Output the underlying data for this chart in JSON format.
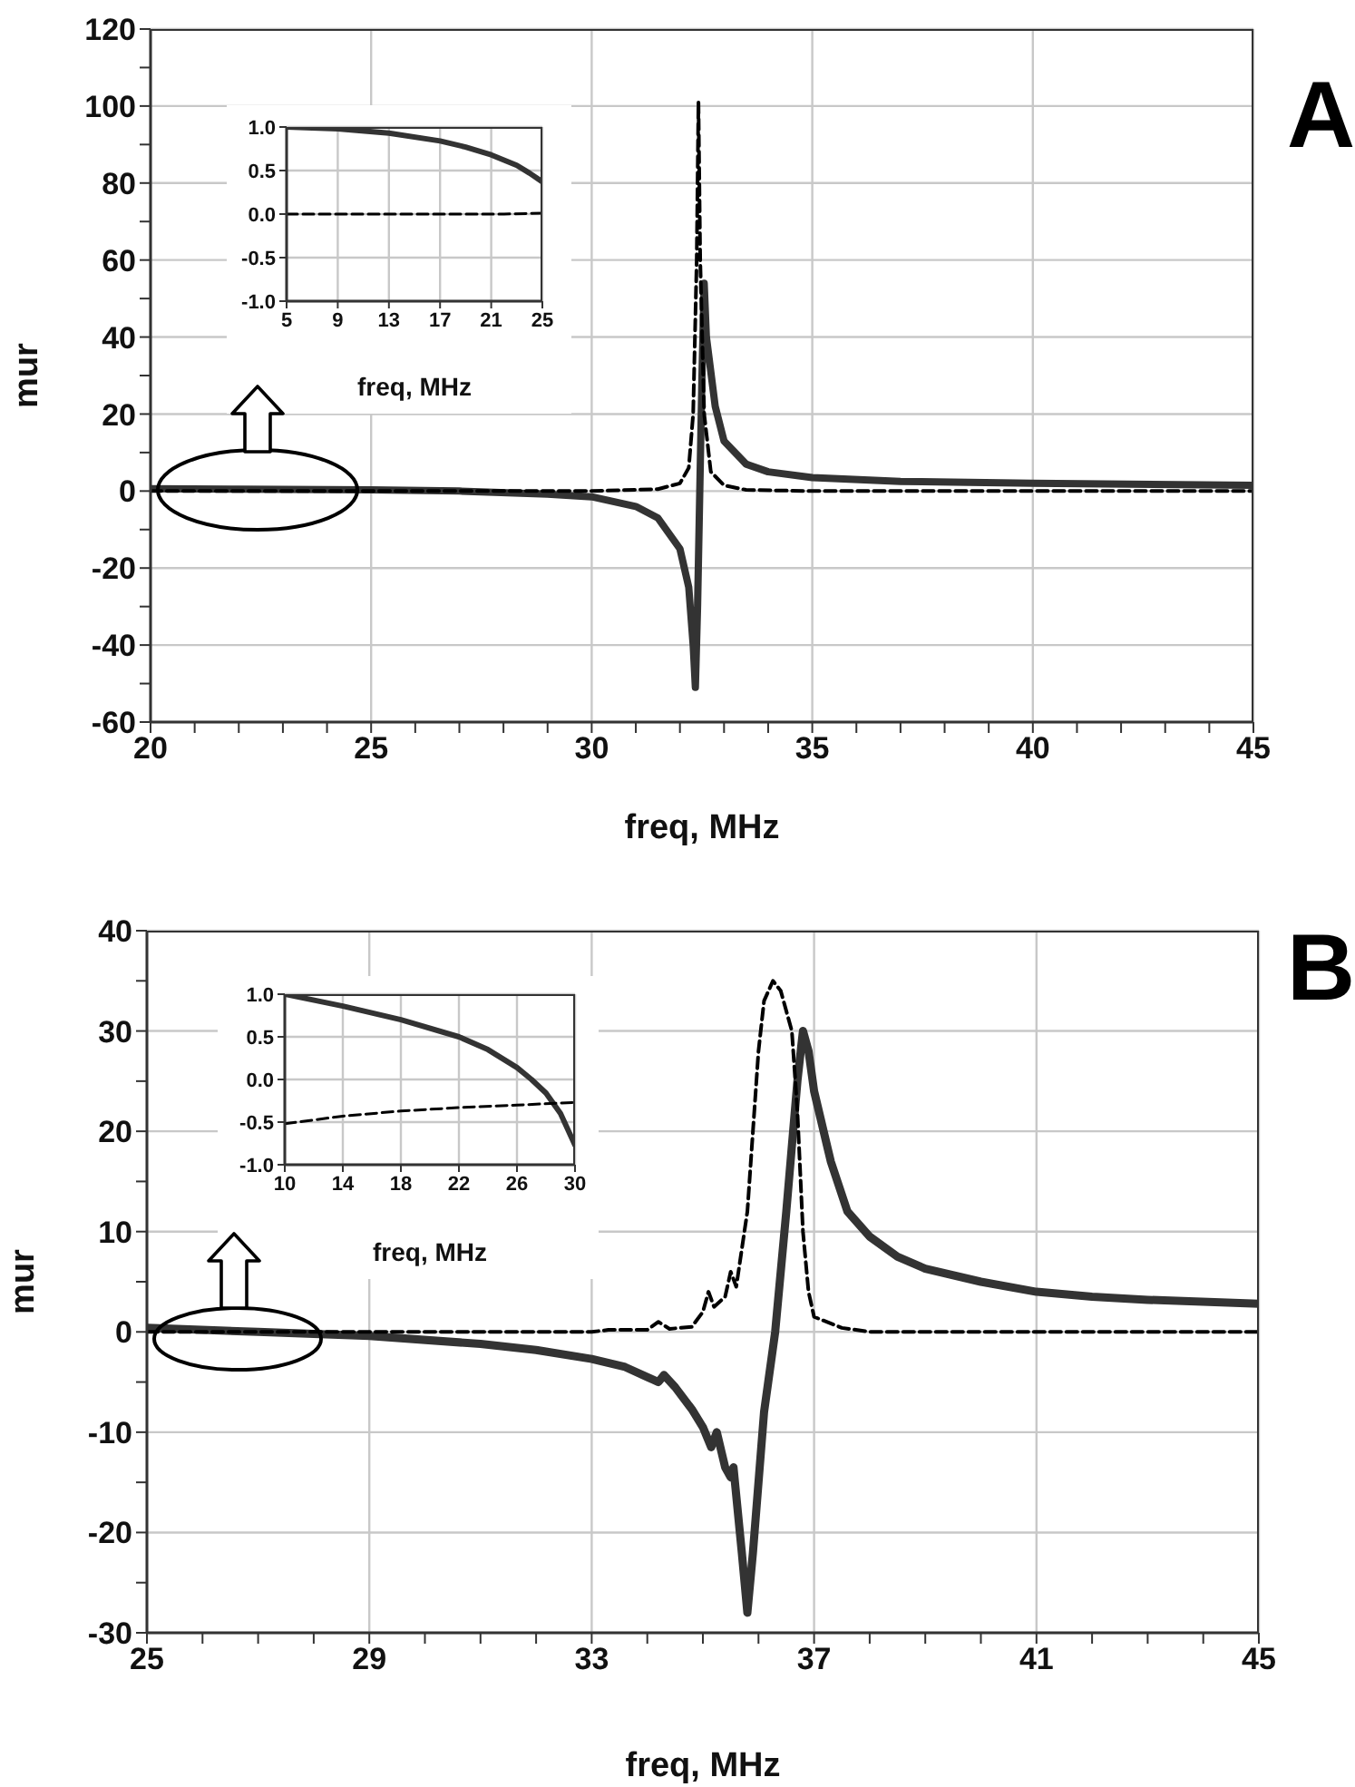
{
  "chart_data": [
    {
      "type": "line",
      "xlabel": "freq, MHz",
      "ylabel": "mur",
      "annotations": [
        "A"
      ],
      "grid": true,
      "marker": "none",
      "xlim": [
        20,
        45
      ],
      "xticks": [
        20,
        {
          "value": 21,
          "label": null
        },
        {
          "value": 22,
          "label": null
        },
        {
          "value": 23,
          "label": null
        },
        {
          "value": 24,
          "label": null
        },
        25,
        {
          "value": 26,
          "label": null
        },
        {
          "value": 27,
          "label": null
        },
        {
          "value": 28,
          "label": null
        },
        {
          "value": 29,
          "label": null
        },
        30,
        {
          "value": 31,
          "label": null
        },
        {
          "value": 32,
          "label": null
        },
        {
          "value": 33,
          "label": null
        },
        {
          "value": 34,
          "label": null
        },
        35,
        {
          "value": 36,
          "label": null
        },
        {
          "value": 37,
          "label": null
        },
        {
          "value": 38,
          "label": null
        },
        {
          "value": 39,
          "label": null
        },
        40,
        {
          "value": 41,
          "label": null
        },
        {
          "value": 42,
          "label": null
        },
        {
          "value": 43,
          "label": null
        },
        {
          "value": 44,
          "label": null
        },
        45
      ],
      "ylim": [
        -60,
        120
      ],
      "yticks": [
        -60,
        {
          "value": -50,
          "label": null
        },
        -40,
        {
          "value": -30,
          "label": null
        },
        -20,
        {
          "value": -10,
          "label": null
        },
        0,
        {
          "value": 10,
          "label": null
        },
        20,
        {
          "value": 30,
          "label": null
        },
        40,
        {
          "value": 50,
          "label": null
        },
        60,
        {
          "value": 70,
          "label": null
        },
        80,
        {
          "value": 90,
          "label": null
        },
        100,
        {
          "value": 110,
          "label": null
        },
        120
      ],
      "series": [
        {
          "color": "#333333",
          "line_style": "solid",
          "x": [
            20,
            22,
            25,
            27,
            29,
            30,
            31,
            31.5,
            32,
            32.2,
            32.3,
            32.35,
            32.4,
            32.45,
            32.5,
            32.55,
            32.6,
            32.8,
            33,
            33.5,
            34,
            35,
            37,
            40,
            45
          ],
          "values": [
            0.6,
            0.5,
            0.3,
            0,
            -0.8,
            -1.5,
            -4,
            -7,
            -15,
            -25,
            -40,
            -51,
            -30,
            0,
            30,
            54,
            40,
            22,
            13,
            7,
            5,
            3.5,
            2.5,
            2,
            1.5
          ]
        },
        {
          "color": "#000000",
          "line_style": "dashed",
          "x": [
            20,
            30,
            31.5,
            32,
            32.2,
            32.3,
            32.38,
            32.42,
            32.46,
            32.55,
            32.7,
            33,
            33.5,
            35,
            45
          ],
          "values": [
            0,
            0,
            0.5,
            2,
            6,
            20,
            60,
            101,
            60,
            20,
            5,
            1.5,
            0.3,
            0,
            0
          ]
        }
      ]
    },
    {
      "type": "line",
      "xlabel": "freq, MHz",
      "grid": true,
      "marker": "none",
      "xlim": [
        5,
        25
      ],
      "xticks": [
        5,
        9,
        13,
        17,
        21,
        25
      ],
      "ylim": [
        -1,
        1
      ],
      "yticks": [
        {
          "value": -1,
          "label": "-1.0"
        },
        {
          "value": -0.5,
          "label": "-0.5"
        },
        {
          "value": 0,
          "label": "0.0"
        },
        {
          "value": 0.5,
          "label": "0.5"
        },
        {
          "value": 1,
          "label": "1.0"
        }
      ],
      "series": [
        {
          "color": "#333333",
          "line_style": "solid",
          "x": [
            5,
            9,
            13,
            17,
            19,
            21,
            23,
            24,
            25
          ],
          "values": [
            1,
            0.98,
            0.93,
            0.84,
            0.77,
            0.68,
            0.56,
            0.47,
            0.37
          ]
        },
        {
          "color": "#000000",
          "line_style": "dashed",
          "x": [
            5,
            22,
            25
          ],
          "values": [
            0,
            0,
            0.01
          ]
        }
      ]
    },
    {
      "type": "line",
      "xlabel": "freq, MHz",
      "ylabel": "mur",
      "annotations": [
        "B"
      ],
      "grid": true,
      "marker": "none",
      "xlim": [
        25,
        45
      ],
      "xticks": [
        25,
        {
          "value": 26,
          "label": null
        },
        {
          "value": 27,
          "label": null
        },
        {
          "value": 28,
          "label": null
        },
        29,
        {
          "value": 30,
          "label": null
        },
        {
          "value": 31,
          "label": null
        },
        {
          "value": 32,
          "label": null
        },
        33,
        {
          "value": 34,
          "label": null
        },
        {
          "value": 35,
          "label": null
        },
        {
          "value": 36,
          "label": null
        },
        37,
        {
          "value": 38,
          "label": null
        },
        {
          "value": 39,
          "label": null
        },
        {
          "value": 40,
          "label": null
        },
        41,
        {
          "value": 42,
          "label": null
        },
        {
          "value": 43,
          "label": null
        },
        {
          "value": 44,
          "label": null
        },
        45
      ],
      "ylim": [
        -30,
        40
      ],
      "yticks": [
        -30,
        {
          "value": -25,
          "label": null
        },
        -20,
        {
          "value": -15,
          "label": null
        },
        -10,
        {
          "value": -5,
          "label": null
        },
        0,
        {
          "value": 5,
          "label": null
        },
        10,
        {
          "value": 15,
          "label": null
        },
        20,
        {
          "value": 25,
          "label": null
        },
        30,
        {
          "value": 35,
          "label": null
        },
        40
      ],
      "series": [
        {
          "color": "#333333",
          "line_style": "solid",
          "x": [
            25,
            27,
            29,
            31,
            32,
            33,
            33.6,
            34,
            34.2,
            34.3,
            34.5,
            34.8,
            35,
            35.15,
            35.25,
            35.4,
            35.5,
            35.55,
            35.7,
            35.8,
            35.9,
            36.1,
            36.3,
            36.5,
            36.7,
            36.8,
            36.9,
            37,
            37.3,
            37.6,
            38,
            38.5,
            39,
            40,
            41,
            42,
            43,
            45
          ],
          "values": [
            0.4,
            0,
            -0.4,
            -1.2,
            -1.8,
            -2.7,
            -3.5,
            -4.5,
            -5,
            -4.3,
            -5.5,
            -7.7,
            -9.5,
            -11.5,
            -10,
            -13.5,
            -14.5,
            -13.5,
            -22,
            -28,
            -22,
            -8,
            0,
            12,
            25,
            30,
            28,
            24,
            17,
            12,
            9.5,
            7.5,
            6.3,
            5,
            4,
            3.5,
            3.2,
            2.8
          ]
        },
        {
          "color": "#000000",
          "line_style": "dashed",
          "x": [
            25,
            33,
            33.3,
            34,
            34.2,
            34.4,
            34.8,
            35,
            35.1,
            35.2,
            35.4,
            35.5,
            35.6,
            35.8,
            35.9,
            36,
            36.1,
            36.26,
            36.4,
            36.6,
            36.7,
            36.8,
            36.9,
            37,
            37.5,
            38,
            45
          ],
          "values": [
            0,
            0,
            0.2,
            0.2,
            1,
            0.3,
            0.5,
            2,
            4,
            2.5,
            3.5,
            6,
            4.5,
            12,
            20,
            28,
            33,
            35,
            34,
            30,
            22,
            10,
            4,
            1.5,
            0.4,
            0,
            0
          ]
        }
      ]
    },
    {
      "type": "line",
      "xlabel": "freq, MHz",
      "grid": true,
      "marker": "none",
      "xlim": [
        10,
        30
      ],
      "xticks": [
        10,
        14,
        18,
        22,
        26,
        30
      ],
      "ylim": [
        -1,
        1
      ],
      "yticks": [
        {
          "value": -1,
          "label": "-1.0"
        },
        {
          "value": -0.5,
          "label": "-0.5"
        },
        {
          "value": 0,
          "label": "0.0"
        },
        {
          "value": 0.5,
          "label": "0.5"
        },
        {
          "value": 1,
          "label": "1.0"
        }
      ],
      "series": [
        {
          "color": "#333333",
          "line_style": "solid",
          "x": [
            10,
            14,
            18,
            22,
            24,
            26,
            27,
            28,
            29,
            30
          ],
          "values": [
            1,
            0.86,
            0.7,
            0.5,
            0.35,
            0.14,
            0,
            -0.16,
            -0.4,
            -0.77
          ]
        },
        {
          "color": "#000000",
          "line_style": "dashed",
          "x": [
            10,
            14,
            18,
            22,
            26,
            30
          ],
          "values": [
            -0.52,
            -0.43,
            -0.37,
            -0.33,
            -0.3,
            -0.27
          ]
        }
      ]
    }
  ]
}
